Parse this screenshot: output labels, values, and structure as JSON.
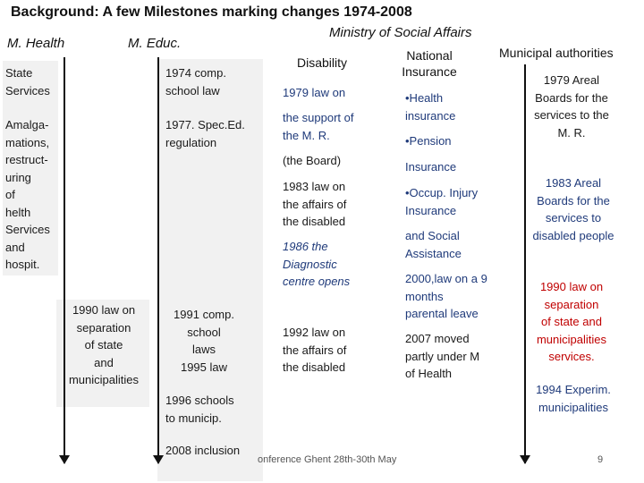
{
  "title": "Background: A few Milestones marking  changes 1974-2008",
  "headers": {
    "ministry_social": "Ministry of Social Affairs",
    "health": "M. Health",
    "educ": "M. Educ.",
    "disability": "Disability",
    "national_insurance": "National\nInsurance",
    "municipal": "Municipal authorities"
  },
  "health": {
    "state_services": "State\nServices",
    "amalgamations": "Amalga-\nmations,\nrestruct-\nuring\nof\nhelth\nServices\nand\nhospit.",
    "law_1990": "1990 law on\nseparation\nof state\nand\nmunicipalities"
  },
  "educ": {
    "e1974": "1974 comp.\nschool law",
    "e1977": "1977. Spec.Ed.\nregulation",
    "e1991": "1991 comp.\nschool\nlaws\n1995 law",
    "e1996": "1996 schools\nto municip.",
    "e2008": "2008 inclusion"
  },
  "disability": {
    "d1979": "1979 law on",
    "support": "the support of\nthe M. R.",
    "board": "(the Board)",
    "d1983": "1983 law on\nthe affairs of\nthe disabled",
    "d1986": "1986 the\nDiagnostic\ncentre opens",
    "d1992": "1992 law on\nthe affairs of\nthe disabled"
  },
  "insurance": {
    "health": "•Health\ninsurance",
    "pension": "•Pension",
    "insurance": "Insurance",
    "occup": "•Occup. Injury\nInsurance",
    "social": "and Social\nAssistance",
    "parental": "2000,law on a 9\nmonths\nparental leave",
    "moved": "2007 moved\npartly under M\nof Health"
  },
  "municipal": {
    "m1979": "1979 Areal\nBoards for the\nservices to the\nM. R.",
    "m1983": "1983 Areal\nBoards for the\nservices to\ndisabled people",
    "m1990": "1990 law on\nseparation\nof state and\nmunicipalities\nservices.",
    "m1994": "1994 Experim.\nmunicipalities"
  },
  "footer": {
    "conference": "onference Ghent 28th-30th May",
    "page_number": "9"
  }
}
